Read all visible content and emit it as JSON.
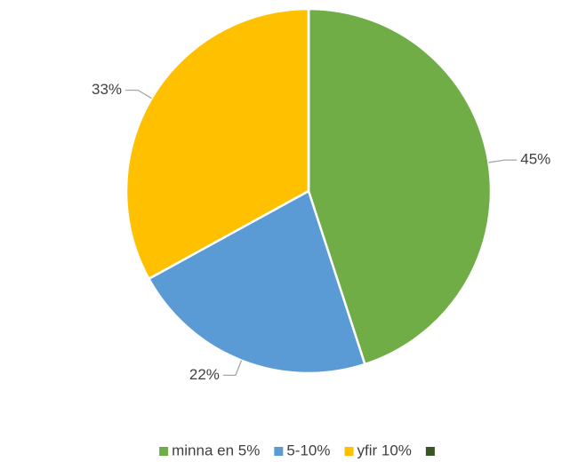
{
  "chart_data": {
    "type": "pie",
    "categories": [
      "minna en 5%",
      "5-10%",
      "yfir 10%",
      null
    ],
    "values": [
      45,
      22,
      33,
      0
    ],
    "value_labels": [
      "45%",
      "22%",
      "33%",
      null
    ],
    "colors": [
      "#70ad47",
      "#5b9bd5",
      "#ffc000",
      "#375623"
    ],
    "legend": "bottom"
  }
}
